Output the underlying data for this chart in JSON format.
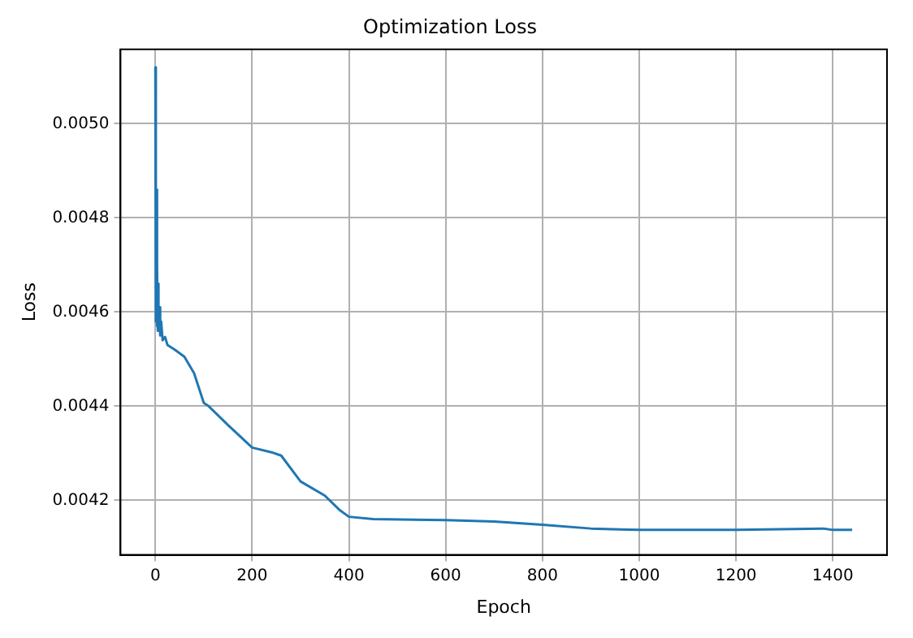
{
  "chart_data": {
    "type": "line",
    "title": "Optimization Loss",
    "xlabel": "Epoch",
    "ylabel": "Loss",
    "xlim": [
      -72,
      1512
    ],
    "xticks": [
      0,
      200,
      400,
      600,
      800,
      1000,
      1200,
      1400
    ],
    "ylim": [
      0.004084,
      0.005158
    ],
    "yticks": [
      0.0042,
      0.0044,
      0.0046,
      0.0048,
      {
        "value": 0.005,
        "label": "0.0050"
      }
    ],
    "grid": true,
    "legend": false,
    "marker": "none",
    "line_style": "solid",
    "series": [
      {
        "color": "#1f77b4",
        "x": [
          0,
          1,
          2,
          3,
          4,
          5,
          6,
          7,
          8,
          10,
          12,
          15,
          20,
          25,
          40,
          60,
          80,
          100,
          110,
          150,
          200,
          240,
          260,
          300,
          350,
          380,
          400,
          450,
          600,
          700,
          800,
          900,
          1000,
          1200,
          1380,
          1400,
          1440
        ],
        "values": [
          0.00512,
          0.00458,
          0.00486,
          0.00457,
          0.0047,
          0.00456,
          0.00466,
          0.00456,
          0.00461,
          0.00455,
          0.00458,
          0.00454,
          0.004547,
          0.00453,
          0.00452,
          0.004505,
          0.00447,
          0.004407,
          0.0044,
          0.00436,
          0.004312,
          0.004302,
          0.004295,
          0.00424,
          0.00421,
          0.00418,
          0.004165,
          0.00416,
          0.004158,
          0.004155,
          0.004148,
          0.00414,
          0.004137,
          0.004137,
          0.00414,
          0.004137,
          0.004137
        ]
      }
    ]
  }
}
